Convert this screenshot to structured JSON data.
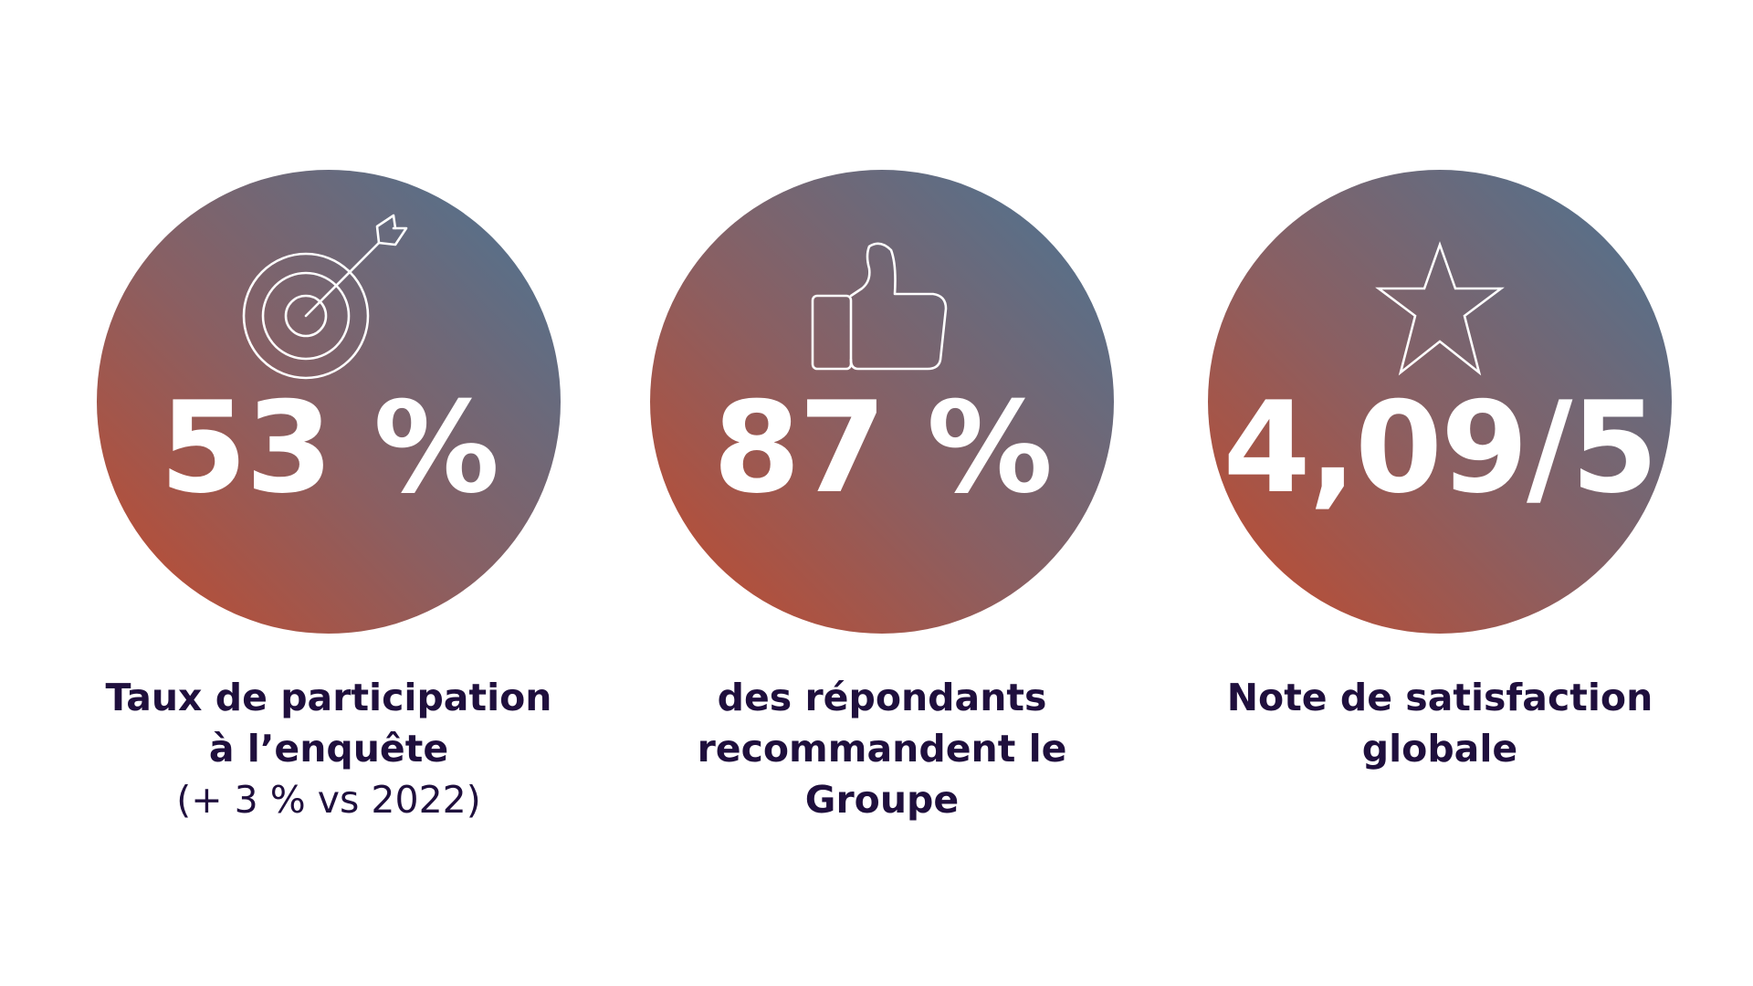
{
  "colors": {
    "gradient_warm": "#c34a2c",
    "gradient_mid": "#8a5f62",
    "gradient_cool": "#4a7494",
    "caption_text": "#1f0f3d",
    "value_text": "#ffffff"
  },
  "stats": [
    {
      "icon": "target-arrow-icon",
      "value": "53 %",
      "caption_line1": "Taux de participation",
      "caption_line2": "à l’enquête",
      "caption_note": "(+ 3 % vs 2022)"
    },
    {
      "icon": "thumbs-up-icon",
      "value": "87 %",
      "caption_line1": "des répondants",
      "caption_line2": "recommandent le",
      "caption_line3": "Groupe"
    },
    {
      "icon": "star-icon",
      "value": "4,09/5",
      "caption_line1": "Note de satisfaction",
      "caption_line2": "globale"
    }
  ]
}
